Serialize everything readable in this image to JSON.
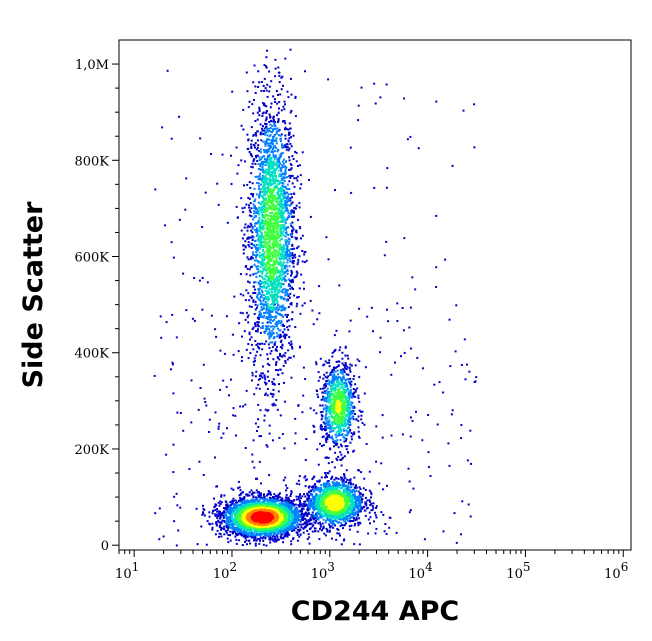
{
  "chart_data": {
    "type": "scatter",
    "style": "flow-cytometry density dot plot",
    "xlabel": "CD244 APC",
    "ylabel": "Side Scatter",
    "x_scale": "log",
    "xlim": [
      7,
      1200000
    ],
    "ylim": [
      -10000,
      1050000
    ],
    "x_ticks": [
      {
        "value": 10,
        "base": "10",
        "exp": "1"
      },
      {
        "value": 100,
        "base": "10",
        "exp": "2"
      },
      {
        "value": 1000,
        "base": "10",
        "exp": "3"
      },
      {
        "value": 10000,
        "base": "10",
        "exp": "4"
      },
      {
        "value": 100000,
        "base": "10",
        "exp": "5"
      },
      {
        "value": 1000000,
        "base": "10",
        "exp": "6"
      }
    ],
    "y_ticks": [
      {
        "value": 0,
        "label": "0"
      },
      {
        "value": 200000,
        "label": "200K"
      },
      {
        "value": 400000,
        "label": "400K"
      },
      {
        "value": 600000,
        "label": "600K"
      },
      {
        "value": 800000,
        "label": "800K"
      },
      {
        "value": 1000000,
        "label": "1,0M"
      }
    ],
    "populations": [
      {
        "center_x": 250,
        "center_y": 650000,
        "spread_log_x": 0.12,
        "spread_y": 140000,
        "density": 0.55
      },
      {
        "center_x": 1200,
        "center_y": 290000,
        "spread_log_x": 0.09,
        "spread_y": 45000,
        "density": 0.6
      },
      {
        "center_x": 200,
        "center_y": 60000,
        "spread_log_x": 0.2,
        "spread_y": 20000,
        "density": 1.0
      },
      {
        "center_x": 1100,
        "center_y": 90000,
        "spread_log_x": 0.15,
        "spread_y": 25000,
        "density": 0.7
      }
    ],
    "color_scale": [
      "#0000c8",
      "#0080ff",
      "#00e0c0",
      "#40ff40",
      "#ffff00",
      "#ff8000",
      "#ff0000"
    ],
    "grid": false
  }
}
